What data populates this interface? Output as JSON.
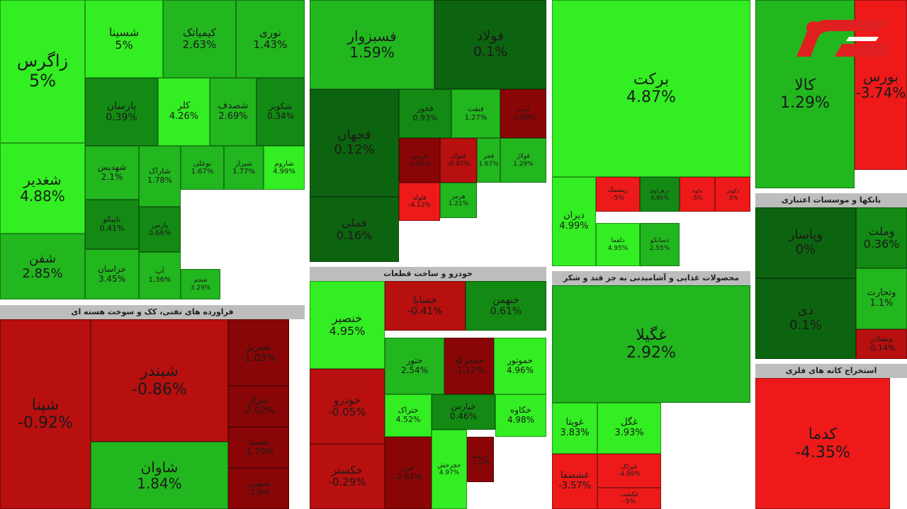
{
  "colors": {
    "up_bright": "#33ee22",
    "up_mid": "#22b71f",
    "up_dark": "#138a14",
    "up_deep": "#0d6410",
    "down_bright": "#ee1a1a",
    "down_mid": "#b80f0f",
    "down_deep": "#8a0606",
    "header": "#bdbdbd"
  },
  "chart_data": {
    "type": "heatmap",
    "sectors": [
      {
        "name": "",
        "tiles": [
          {
            "name": "زاگرس",
            "value": 5
          },
          {
            "name": "شغدیر",
            "value": 4.88
          },
          {
            "name": "شفن",
            "value": 2.85
          },
          {
            "name": "شسینا",
            "value": 5
          },
          {
            "name": "کیمیاتک",
            "value": 2.63
          },
          {
            "name": "نوری",
            "value": 1.43
          },
          {
            "name": "پارسان",
            "value": 0.39
          },
          {
            "name": "کلر",
            "value": 4.26
          },
          {
            "name": "شصدف",
            "value": 2.69
          },
          {
            "name": "شکویر",
            "value": 0.34
          },
          {
            "name": "شهدیس",
            "value": 2.1
          },
          {
            "name": "شاراک",
            "value": 1.78
          },
          {
            "name": "نوعلی",
            "value": 1.67
          },
          {
            "name": "شیراز",
            "value": 1.77
          },
          {
            "name": "شاروم",
            "value": 4.99
          },
          {
            "name": "تاپیکو",
            "value": 0.41
          },
          {
            "name": "پارس",
            "value": 0.66
          },
          {
            "name": "خراسان",
            "value": 3.45
          },
          {
            "name": "آپ",
            "value": 1.36
          },
          {
            "name": "شجم",
            "value": 3.29
          }
        ]
      },
      {
        "name": "فراورده های نفتی، کک و سوخت هسته ای",
        "tiles": [
          {
            "name": "شپنا",
            "value": -0.92
          },
          {
            "name": "شبندر",
            "value": -0.86
          },
          {
            "name": "شاوان",
            "value": 1.84
          },
          {
            "name": "شبریز",
            "value": -1.03
          },
          {
            "name": "شراز",
            "value": -2.02
          },
          {
            "name": "شسپا",
            "value": -1.79
          },
          {
            "name": "شبهرن",
            "value": -1.9
          }
        ]
      },
      {
        "name": "",
        "tiles": [
          {
            "name": "فسبزوار",
            "value": 1.59
          },
          {
            "name": "فولاد",
            "value": 0.1
          },
          {
            "name": "فجهان",
            "value": 0.12
          },
          {
            "name": "فملی",
            "value": 0.16
          },
          {
            "name": "فخوز",
            "value": 0.93
          },
          {
            "name": "فنفت",
            "value": 1.27
          },
          {
            "name": "ذوب",
            "value": -1.59
          },
          {
            "name": "فروس",
            "value": -2.86
          },
          {
            "name": "فولاژ",
            "value": 1.29
          },
          {
            "name": "فجر",
            "value": 1.67
          },
          {
            "name": "فنوال",
            "value": -0.97
          },
          {
            "name": "هرمز",
            "value": 1.21
          },
          {
            "name": "فلوله",
            "value": -4.12
          }
        ]
      },
      {
        "name": "خودرو و ساخت قطعات",
        "tiles": [
          {
            "name": "خنصیر",
            "value": 4.95
          },
          {
            "name": "خساپا",
            "value": -0.41
          },
          {
            "name": "خبهمن",
            "value": 0.61
          },
          {
            "name": "خودرو",
            "value": -0.05
          },
          {
            "name": "ختور",
            "value": 2.54
          },
          {
            "name": "خمحرکه",
            "value": -1.12
          },
          {
            "name": "خموتور",
            "value": 4.96
          },
          {
            "name": "ختراک",
            "value": 4.52
          },
          {
            "name": "خپارس",
            "value": 0.46
          },
          {
            "name": "خکاوه",
            "value": 4.98
          },
          {
            "name": "خکستر",
            "value": -0.29
          },
          {
            "name": "خزر",
            "value": -2.62
          },
          {
            "name": "خچرخش",
            "value": 4.97
          },
          {
            "name": "خریخته",
            "value": -1.18
          }
        ]
      },
      {
        "name": "",
        "tiles": [
          {
            "name": "برکت",
            "value": 4.87
          },
          {
            "name": "دیران",
            "value": 4.99
          },
          {
            "name": "ریشمک",
            "value": -5
          },
          {
            "name": "دلقما",
            "value": 4.95
          },
          {
            "name": "دسانکو",
            "value": 2.55
          },
          {
            "name": "دزهراوی",
            "value": 0.86
          },
          {
            "name": "داوه",
            "value": -5
          },
          {
            "name": "دکوثر",
            "value": -5
          }
        ]
      },
      {
        "name": "محصولات غذایی و آشامیدنی به جز قند و شکر",
        "tiles": [
          {
            "name": "غگیلا",
            "value": 2.92
          },
          {
            "name": "غویتا",
            "value": 3.83
          },
          {
            "name": "غگل",
            "value": 3.93
          },
          {
            "name": "غشصفا",
            "value": -3.57
          },
          {
            "name": "غبراک",
            "value": -4.99
          },
          {
            "name": "غکشت",
            "value": -5
          }
        ]
      },
      {
        "name": "",
        "tiles": [
          {
            "name": "کالا",
            "value": 1.29
          },
          {
            "name": "بورس",
            "value": -3.74
          }
        ]
      },
      {
        "name": "بانکها و موسسات اعتباری",
        "tiles": [
          {
            "name": "وپاسار",
            "value": 0
          },
          {
            "name": "وملت",
            "value": 0.36
          },
          {
            "name": "وتجارت",
            "value": 1.1
          },
          {
            "name": "دی",
            "value": 0.1
          },
          {
            "name": "وبصادر",
            "value": -0.14
          }
        ]
      },
      {
        "name": "استخراج کانه های فلزی",
        "tiles": [
          {
            "name": "کدما",
            "value": -4.35
          }
        ]
      }
    ]
  }
}
